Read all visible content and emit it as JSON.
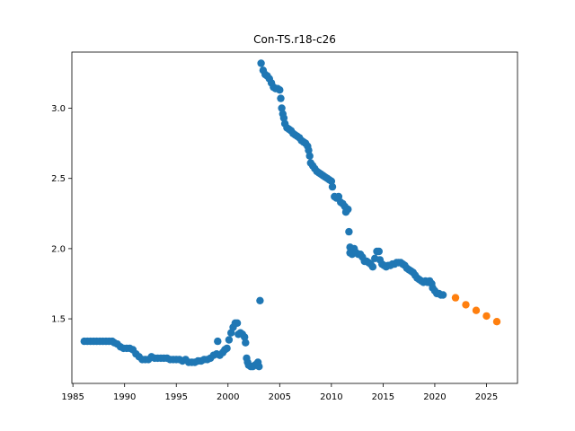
{
  "chart_data": {
    "type": "scatter",
    "title": "Con-TS.r18-c26",
    "xlabel": "",
    "ylabel": "",
    "xlim": [
      1984.9,
      2028.0
    ],
    "ylim": [
      1.04,
      3.4
    ],
    "grid": false,
    "x_ticks": [
      1985,
      1990,
      1995,
      2000,
      2005,
      2010,
      2015,
      2020,
      2025
    ],
    "y_ticks": [
      1.5,
      2.0,
      2.5,
      3.0
    ],
    "y_tick_labels": [
      "1.5",
      "2.0",
      "2.5",
      "3.0"
    ],
    "series": [
      {
        "color": "#1f77b4",
        "points": [
          [
            1986.1,
            1.34
          ],
          [
            1986.4,
            1.34
          ],
          [
            1986.7,
            1.34
          ],
          [
            1987.0,
            1.34
          ],
          [
            1987.3,
            1.34
          ],
          [
            1987.6,
            1.34
          ],
          [
            1987.9,
            1.34
          ],
          [
            1988.2,
            1.34
          ],
          [
            1988.5,
            1.34
          ],
          [
            1988.8,
            1.34
          ],
          [
            1989.0,
            1.33
          ],
          [
            1989.3,
            1.32
          ],
          [
            1989.6,
            1.3
          ],
          [
            1989.9,
            1.29
          ],
          [
            1990.2,
            1.29
          ],
          [
            1990.5,
            1.29
          ],
          [
            1990.8,
            1.28
          ],
          [
            1991.1,
            1.25
          ],
          [
            1991.4,
            1.23
          ],
          [
            1991.7,
            1.21
          ],
          [
            1992.0,
            1.21
          ],
          [
            1992.3,
            1.21
          ],
          [
            1992.6,
            1.23
          ],
          [
            1992.9,
            1.22
          ],
          [
            1993.2,
            1.22
          ],
          [
            1993.5,
            1.22
          ],
          [
            1993.8,
            1.22
          ],
          [
            1994.1,
            1.22
          ],
          [
            1994.4,
            1.21
          ],
          [
            1994.7,
            1.21
          ],
          [
            1995.0,
            1.21
          ],
          [
            1995.3,
            1.21
          ],
          [
            1995.6,
            1.2
          ],
          [
            1995.9,
            1.21
          ],
          [
            1996.2,
            1.19
          ],
          [
            1996.5,
            1.19
          ],
          [
            1996.8,
            1.19
          ],
          [
            1997.1,
            1.2
          ],
          [
            1997.4,
            1.2
          ],
          [
            1997.7,
            1.21
          ],
          [
            1998.0,
            1.21
          ],
          [
            1998.3,
            1.22
          ],
          [
            1998.6,
            1.24
          ],
          [
            1998.9,
            1.25
          ],
          [
            1999.0,
            1.34
          ],
          [
            1999.2,
            1.24
          ],
          [
            1999.5,
            1.26
          ],
          [
            1999.7,
            1.28
          ],
          [
            1999.9,
            1.29
          ],
          [
            2000.1,
            1.35
          ],
          [
            2000.3,
            1.4
          ],
          [
            2000.5,
            1.44
          ],
          [
            2000.7,
            1.47
          ],
          [
            2000.9,
            1.47
          ],
          [
            2001.0,
            1.39
          ],
          [
            2001.2,
            1.4
          ],
          [
            2001.4,
            1.39
          ],
          [
            2001.6,
            1.37
          ],
          [
            2001.7,
            1.33
          ],
          [
            2001.8,
            1.22
          ],
          [
            2001.9,
            1.19
          ],
          [
            2002.0,
            1.17
          ],
          [
            2002.2,
            1.16
          ],
          [
            2002.4,
            1.16
          ],
          [
            2002.6,
            1.17
          ],
          [
            2002.8,
            1.18
          ],
          [
            2003.0,
            1.16
          ],
          [
            2002.9,
            1.19
          ],
          [
            2003.1,
            1.63
          ],
          [
            2003.2,
            3.32
          ],
          [
            2003.4,
            3.27
          ],
          [
            2003.6,
            3.24
          ],
          [
            2003.8,
            3.23
          ],
          [
            2004.0,
            3.21
          ],
          [
            2004.2,
            3.18
          ],
          [
            2004.4,
            3.15
          ],
          [
            2004.6,
            3.14
          ],
          [
            2004.8,
            3.14
          ],
          [
            2005.0,
            3.13
          ],
          [
            2005.1,
            3.07
          ],
          [
            2005.2,
            3.0
          ],
          [
            2005.3,
            2.96
          ],
          [
            2005.4,
            2.93
          ],
          [
            2005.5,
            2.89
          ],
          [
            2005.7,
            2.86
          ],
          [
            2005.9,
            2.85
          ],
          [
            2006.1,
            2.84
          ],
          [
            2006.3,
            2.82
          ],
          [
            2006.5,
            2.81
          ],
          [
            2006.7,
            2.8
          ],
          [
            2006.9,
            2.79
          ],
          [
            2007.1,
            2.77
          ],
          [
            2007.3,
            2.76
          ],
          [
            2007.5,
            2.75
          ],
          [
            2007.7,
            2.73
          ],
          [
            2007.8,
            2.7
          ],
          [
            2007.9,
            2.66
          ],
          [
            2008.0,
            2.61
          ],
          [
            2008.2,
            2.59
          ],
          [
            2008.4,
            2.57
          ],
          [
            2008.6,
            2.55
          ],
          [
            2008.8,
            2.54
          ],
          [
            2009.0,
            2.53
          ],
          [
            2009.2,
            2.52
          ],
          [
            2009.4,
            2.51
          ],
          [
            2009.6,
            2.5
          ],
          [
            2009.8,
            2.49
          ],
          [
            2010.0,
            2.48
          ],
          [
            2010.1,
            2.44
          ],
          [
            2010.3,
            2.37
          ],
          [
            2010.5,
            2.36
          ],
          [
            2010.7,
            2.37
          ],
          [
            2010.9,
            2.33
          ],
          [
            2011.1,
            2.32
          ],
          [
            2011.3,
            2.3
          ],
          [
            2011.4,
            2.26
          ],
          [
            2011.6,
            2.28
          ],
          [
            2011.7,
            2.12
          ],
          [
            2011.8,
            2.01
          ],
          [
            2011.8,
            1.97
          ],
          [
            2012.0,
            1.96
          ],
          [
            2012.2,
            2.0
          ],
          [
            2012.4,
            1.97
          ],
          [
            2012.6,
            1.96
          ],
          [
            2012.8,
            1.96
          ],
          [
            2013.0,
            1.94
          ],
          [
            2013.2,
            1.91
          ],
          [
            2013.4,
            1.91
          ],
          [
            2013.6,
            1.9
          ],
          [
            2013.8,
            1.89
          ],
          [
            2014.0,
            1.87
          ],
          [
            2014.2,
            1.93
          ],
          [
            2014.4,
            1.98
          ],
          [
            2014.6,
            1.98
          ],
          [
            2014.7,
            1.92
          ],
          [
            2014.9,
            1.89
          ],
          [
            2015.1,
            1.88
          ],
          [
            2015.3,
            1.87
          ],
          [
            2015.5,
            1.88
          ],
          [
            2015.7,
            1.88
          ],
          [
            2015.9,
            1.89
          ],
          [
            2016.1,
            1.89
          ],
          [
            2016.3,
            1.9
          ],
          [
            2016.5,
            1.9
          ],
          [
            2016.7,
            1.9
          ],
          [
            2016.9,
            1.89
          ],
          [
            2017.1,
            1.88
          ],
          [
            2017.3,
            1.86
          ],
          [
            2017.5,
            1.85
          ],
          [
            2017.7,
            1.84
          ],
          [
            2017.9,
            1.83
          ],
          [
            2018.1,
            1.81
          ],
          [
            2018.3,
            1.79
          ],
          [
            2018.5,
            1.78
          ],
          [
            2018.7,
            1.77
          ],
          [
            2018.9,
            1.76
          ],
          [
            2019.1,
            1.77
          ],
          [
            2019.3,
            1.76
          ],
          [
            2019.5,
            1.77
          ],
          [
            2019.7,
            1.75
          ],
          [
            2019.8,
            1.72
          ],
          [
            2020.0,
            1.7
          ],
          [
            2020.2,
            1.68
          ],
          [
            2020.4,
            1.68
          ],
          [
            2020.6,
            1.67
          ],
          [
            2020.8,
            1.67
          ]
        ]
      },
      {
        "color": "#ff7f0e",
        "points": [
          [
            2022.0,
            1.65
          ],
          [
            2023.0,
            1.6
          ],
          [
            2024.0,
            1.56
          ],
          [
            2025.0,
            1.52
          ],
          [
            2026.0,
            1.48
          ]
        ]
      }
    ]
  }
}
